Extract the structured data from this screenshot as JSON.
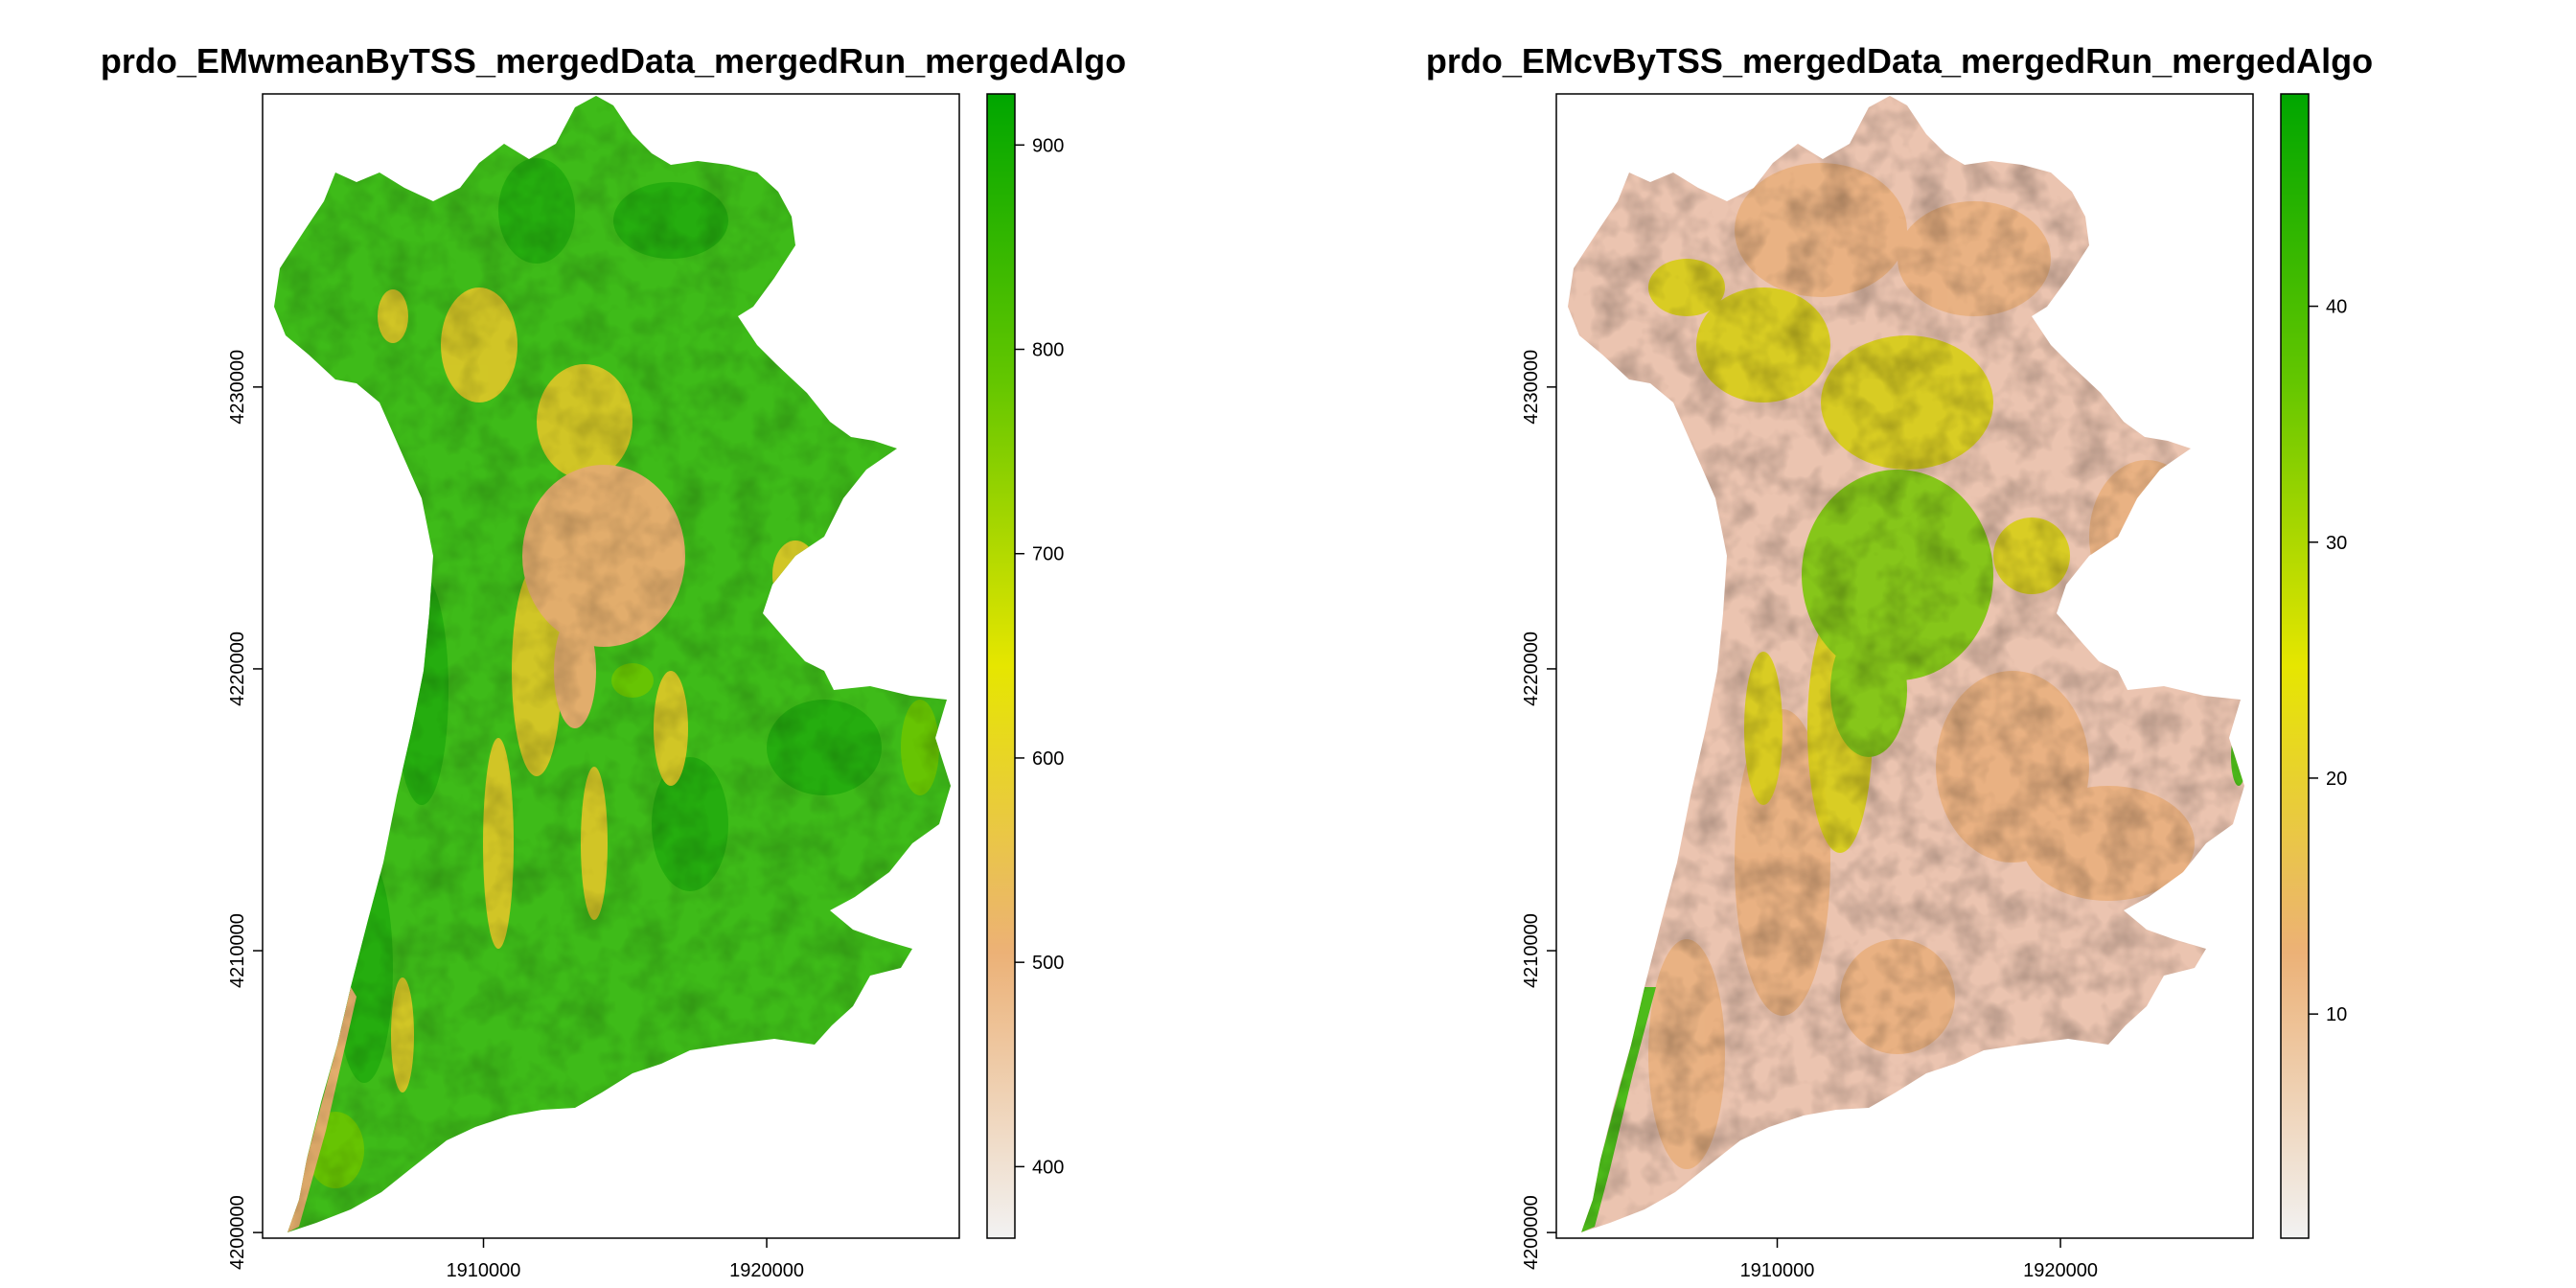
{
  "chart_data": [
    {
      "type": "heatmap",
      "title": "prdo_EMwmeanByTSS_mergedData_mergedRun_mergedAlgo",
      "xlabel": "",
      "ylabel": "",
      "x_ticks": [
        1910000,
        1920000
      ],
      "x_tick_labels": [
        "1910000",
        "1920000"
      ],
      "y_ticks": [
        4200000,
        4210000,
        4220000,
        4230000
      ],
      "y_tick_labels": [
        "4200000",
        "4210000",
        "4220000",
        "4230000"
      ],
      "xlim": [
        1902200,
        1926800
      ],
      "ylim": [
        4199800,
        4240400
      ],
      "legend": {
        "placement": "right",
        "range": [
          365,
          925
        ],
        "ticks": [
          400,
          500,
          600,
          700,
          800,
          900
        ],
        "tick_labels": [
          "400",
          "500",
          "600",
          "700",
          "800",
          "900"
        ]
      },
      "palette": [
        "#f2f2f2",
        "#ecb176",
        "#e6e600",
        "#63c600",
        "#00a600"
      ],
      "grid": false
    },
    {
      "type": "heatmap",
      "title": "prdo_EMcvByTSS_mergedData_mergedRun_mergedAlgo",
      "xlabel": "",
      "ylabel": "",
      "x_ticks": [
        1910000,
        1920000
      ],
      "x_tick_labels": [
        "1910000",
        "1920000"
      ],
      "y_ticks": [
        4200000,
        4210000,
        4220000,
        4230000
      ],
      "y_tick_labels": [
        "4200000",
        "4210000",
        "4220000",
        "4230000"
      ],
      "xlim": [
        1902200,
        1926800
      ],
      "ylim": [
        4199800,
        4240400
      ],
      "legend": {
        "placement": "right",
        "range": [
          0.5,
          49
        ],
        "ticks": [
          10,
          20,
          30,
          40
        ],
        "tick_labels": [
          "10",
          "20",
          "30",
          "40"
        ]
      },
      "palette": [
        "#f2f2f2",
        "#ecb176",
        "#e6e600",
        "#63c600",
        "#00a600"
      ],
      "grid": false
    }
  ]
}
